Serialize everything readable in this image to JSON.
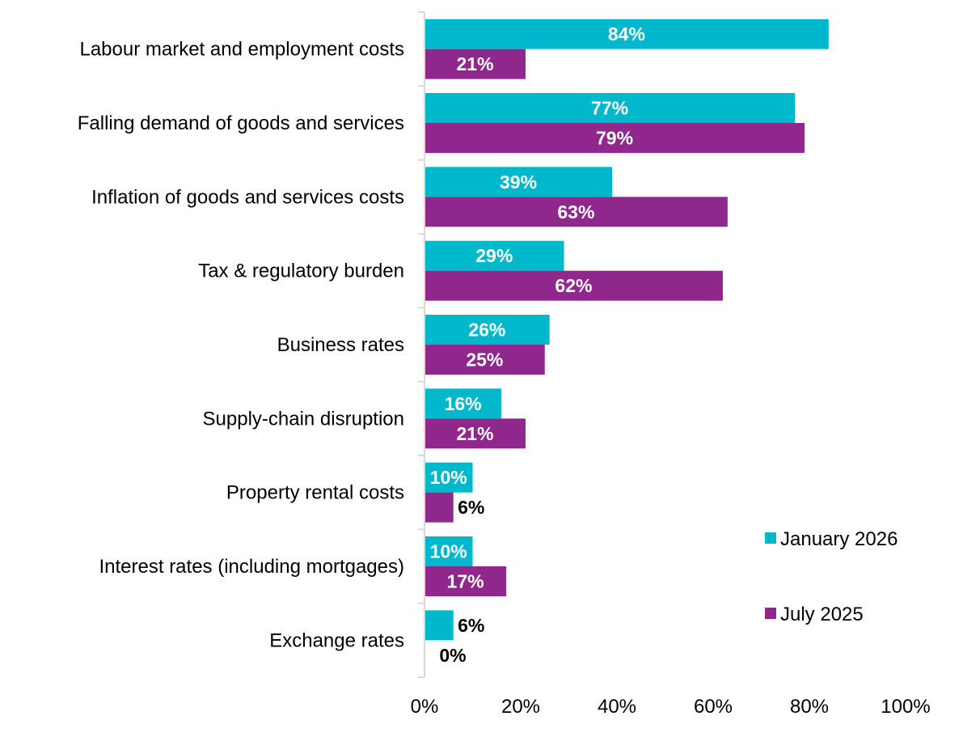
{
  "chart_data": {
    "type": "bar",
    "orientation": "horizontal",
    "title": "",
    "xlabel": "",
    "ylabel": "",
    "xlim": [
      0,
      100
    ],
    "x_ticks": [
      "0%",
      "20%",
      "40%",
      "60%",
      "80%",
      "100%"
    ],
    "grid": false,
    "legend_position": "right",
    "categories": [
      "Labour market and employment costs",
      "Falling demand of goods and services",
      "Inflation of goods and services costs",
      "Tax & regulatory burden",
      "Business rates ",
      "Supply-chain disruption",
      "Property rental costs",
      "Interest rates (including mortgages)",
      "Exchange rates"
    ],
    "series": [
      {
        "name": "January 2026",
        "color": "#00B8CC",
        "values": [
          84,
          77,
          39,
          29,
          26,
          16,
          10,
          10,
          6
        ],
        "labels": [
          "84%",
          "77%",
          "39%",
          "29%",
          "26%",
          "16%",
          "10%",
          "10%",
          "6%"
        ]
      },
      {
        "name": "July 2025",
        "color": "#90278C",
        "values": [
          21,
          79,
          63,
          62,
          25,
          21,
          6,
          17,
          0
        ],
        "labels": [
          "21%",
          "79%",
          "63%",
          "62%",
          "25%",
          "21%",
          "6%",
          "17%",
          "0%"
        ]
      }
    ]
  }
}
